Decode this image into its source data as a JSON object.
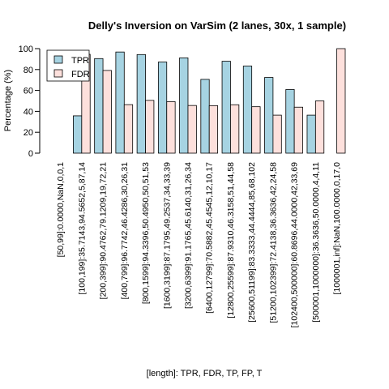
{
  "chart_data": {
    "type": "bar",
    "title": "Delly's Inversion on VarSim (2 lanes, 30x, 1 sample)",
    "xlabel": "[length]: TPR, FDR, TP, FP, T",
    "ylabel": "Percentage (%)",
    "ylim": [
      0,
      100
    ],
    "yticks": [
      0,
      20,
      40,
      60,
      80,
      100
    ],
    "legend_position": "top-left",
    "categories": [
      "[50,99]:0.0000,NaN,0,0,1",
      "[100,199]:35.7143,94.5652,5,87,14",
      "[200,399]:90.4762,79.1209,19,72,21",
      "[400,799]:96.7742,46.4286,30,26,31",
      "[800,1599]:94.3396,50.4950,50,51,53",
      "[1600,3199]:87.1795,49.2537,34,33,39",
      "[3200,6399]:91.1765,45.6140,31,26,34",
      "[6400,12799]:70.5882,45.4545,12,10,17",
      "[12800,25599]:87.9310,46.3158,51,44,58",
      "[25600,51199]:83.3333,44.4444,85,68,102",
      "[51200,102399]:72.4138,36.3636,42,24,58",
      "[102400,500000]:60.8696,44.0000,42,33,69",
      "[500001,1000000]:36.3636,50.0000,4,4,11",
      "[1000001,inf]:NaN,100.0000,0,17,0"
    ],
    "series": [
      {
        "name": "TPR",
        "color": "#a6d3e2",
        "values": [
          0.0,
          35.7143,
          90.4762,
          96.7742,
          94.3396,
          87.1795,
          91.1765,
          70.5882,
          87.931,
          83.3333,
          72.4138,
          60.8696,
          36.3636,
          null
        ]
      },
      {
        "name": "FDR",
        "color": "#fde0dc",
        "values": [
          null,
          94.5652,
          79.1209,
          46.4286,
          50.495,
          49.2537,
          45.614,
          45.4545,
          46.3158,
          44.4444,
          36.3636,
          44.0,
          50.0,
          100.0
        ]
      }
    ],
    "grid": false
  }
}
